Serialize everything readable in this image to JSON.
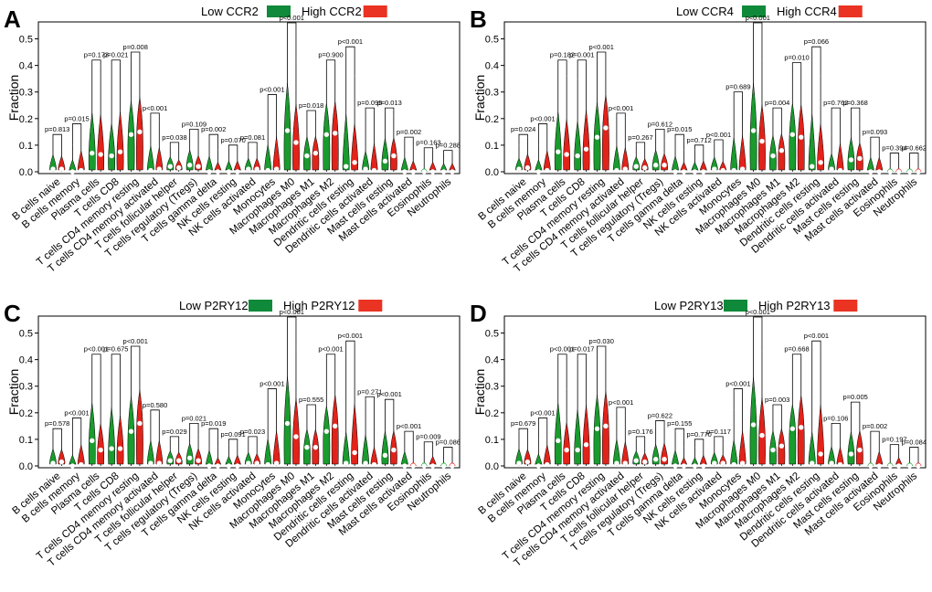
{
  "colors": {
    "low": "#1a9b2e",
    "high": "#e2231a",
    "legend_low": "#0f8a3a",
    "legend_high": "#ea3323"
  },
  "chart_data": [
    {
      "type": "violin",
      "panel": "A",
      "gene": "CCR2",
      "legend": [
        "Low CCR2",
        "High CCR2"
      ],
      "ylabel": "Fraction",
      "ylim": [
        0,
        0.55
      ],
      "yticks": [
        "0.0",
        "0.1",
        "0.2",
        "0.3",
        "0.4",
        "0.5"
      ],
      "categories": [
        "B cells naive",
        "B cells memory",
        "Plasma cells",
        "T cells CD8",
        "T cells CD4 memory resting",
        "T cells CD4 memory activated",
        "T cells follicular helper",
        "T cells regulatory (Tregs)",
        "T cells gamma delta",
        "NK cells resting",
        "NK cells activated",
        "Monocytes",
        "Macrophages M0",
        "Macrophages M1",
        "Macrophages M2",
        "Dendritic cells resting",
        "Dendritic cells activated",
        "Mast cells resting",
        "Mast cells activated",
        "Eosinophils",
        "Neutrophils"
      ],
      "p_values": [
        "p=0.813",
        "p=0.015",
        "p=0.173",
        "p=0.021",
        "p=0.008",
        "p<0.001",
        "p=0.038",
        "p=0.109",
        "p=0.002",
        "p=0.070",
        "p=0.081",
        "p<0.001",
        "p<0.001",
        "p=0.018",
        "p=0.900",
        "p<0.001",
        "p=0.095",
        "p=0.013",
        "p=0.002",
        "p=0.163",
        "p=0.288"
      ],
      "series": [
        {
          "name": "Low CCR2",
          "max": [
            0.13,
            0.1,
            0.41,
            0.33,
            0.42,
            0.21,
            0.1,
            0.15,
            0.13,
            0.09,
            0.1,
            0.22,
            0.55,
            0.22,
            0.4,
            0.46,
            0.16,
            0.23,
            0.12,
            0.05,
            0.07
          ],
          "median": [
            0.01,
            0.0,
            0.07,
            0.06,
            0.14,
            0.005,
            0.02,
            0.025,
            0.0,
            0.0,
            0.01,
            0.005,
            0.155,
            0.06,
            0.14,
            0.02,
            0.01,
            0.04,
            0.0,
            0.0,
            0.0
          ]
        },
        {
          "name": "High CCR2",
          "max": [
            0.12,
            0.17,
            0.4,
            0.41,
            0.44,
            0.19,
            0.08,
            0.11,
            0.08,
            0.09,
            0.1,
            0.28,
            0.43,
            0.21,
            0.41,
            0.36,
            0.23,
            0.21,
            0.09,
            0.08,
            0.07
          ],
          "median": [
            0.01,
            0.005,
            0.065,
            0.075,
            0.15,
            0.01,
            0.015,
            0.02,
            0.0,
            0.0,
            0.01,
            0.01,
            0.11,
            0.07,
            0.145,
            0.035,
            0.005,
            0.06,
            0.0,
            0.0,
            0.0
          ]
        }
      ]
    },
    {
      "type": "violin",
      "panel": "B",
      "gene": "CCR4",
      "legend": [
        "Low CCR4",
        "High CCR4"
      ],
      "ylabel": "Fraction",
      "ylim": [
        0,
        0.55
      ],
      "yticks": [
        "0.0",
        "0.1",
        "0.2",
        "0.3",
        "0.4",
        "0.5"
      ],
      "categories": [
        "B cells naive",
        "B cells memory",
        "Plasma cells",
        "T cells CD8",
        "T cells CD4 memory resting",
        "T cells CD4 memory activated",
        "T cells follicular helper",
        "T cells regulatory (Tregs)",
        "T cells gamma delta",
        "NK cells resting",
        "NK cells activated",
        "Monocytes",
        "Macrophages M0",
        "Macrophages M1",
        "Macrophages M2",
        "Dendritic cells resting",
        "Dendritic cells activated",
        "Mast cells resting",
        "Mast cells activated",
        "Eosinophils",
        "Neutrophils"
      ],
      "p_values": [
        "p=0.024",
        "p<0.001",
        "p=0.182",
        "p=0.001",
        "p<0.001",
        "p<0.001",
        "p=0.267",
        "p=0.612",
        "p=0.015",
        "p=0.712",
        "p<0.001",
        "p=0.689",
        "p<0.001",
        "p=0.004",
        "p=0.010",
        "p=0.066",
        "p=0.762",
        "p=0.368",
        "p=0.093",
        "p=0.394",
        "p=0.662"
      ],
      "series": [
        {
          "name": "Low CCR4",
          "max": [
            0.1,
            0.1,
            0.41,
            0.35,
            0.42,
            0.21,
            0.1,
            0.15,
            0.13,
            0.08,
            0.11,
            0.28,
            0.55,
            0.23,
            0.4,
            0.46,
            0.14,
            0.23,
            0.12,
            0.05,
            0.06
          ],
          "median": [
            0.01,
            0.0,
            0.075,
            0.06,
            0.13,
            0.005,
            0.02,
            0.025,
            0.0,
            0.0,
            0.01,
            0.005,
            0.155,
            0.06,
            0.14,
            0.02,
            0.01,
            0.045,
            0.0,
            0.0,
            0.0
          ]
        },
        {
          "name": "High CCR4",
          "max": [
            0.13,
            0.17,
            0.36,
            0.41,
            0.44,
            0.19,
            0.09,
            0.12,
            0.08,
            0.09,
            0.08,
            0.29,
            0.42,
            0.22,
            0.4,
            0.36,
            0.23,
            0.18,
            0.12,
            0.06,
            0.06
          ],
          "median": [
            0.015,
            0.005,
            0.065,
            0.085,
            0.165,
            0.01,
            0.015,
            0.025,
            0.0,
            0.0,
            0.005,
            0.01,
            0.115,
            0.08,
            0.13,
            0.035,
            0.005,
            0.05,
            0.0,
            0.0,
            0.0
          ]
        }
      ]
    },
    {
      "type": "violin",
      "panel": "C",
      "gene": "P2RY12",
      "legend": [
        "Low P2RY12",
        "High P2RY12"
      ],
      "ylabel": "Fraction",
      "ylim": [
        0,
        0.55
      ],
      "yticks": [
        "0.0",
        "0.1",
        "0.2",
        "0.3",
        "0.4",
        "0.5"
      ],
      "categories": [
        "B cells naive",
        "B cells memory",
        "Plasma cells",
        "T cells CD8",
        "T cells CD4 memory resting",
        "T cells CD4 memory activated",
        "T cells follicular helper",
        "T cells regulatory (Tregs)",
        "T cells gamma delta",
        "NK cells resting",
        "NK cells activated",
        "Monocytes",
        "Macrophages M0",
        "Macrophages M1",
        "Macrophages M2",
        "Dendritic cells resting",
        "Dendritic cells activated",
        "Mast cells resting",
        "Mast cells activated",
        "Eosinophils",
        "Neutrophils"
      ],
      "p_values": [
        "p=0.578",
        "p<0.001",
        "p<0.001",
        "p=0.675",
        "p<0.001",
        "p=0.580",
        "p=0.029",
        "p=0.021",
        "p=0.019",
        "p=0.091",
        "p=0.023",
        "p<0.001",
        "p<0.001",
        "p=0.555",
        "p<0.001",
        "p<0.001",
        "p=0.271",
        "p<0.001",
        "p<0.001",
        "p=0.009",
        "p=0.086"
      ],
      "series": [
        {
          "name": "Low P2RY12",
          "max": [
            0.13,
            0.09,
            0.41,
            0.41,
            0.42,
            0.2,
            0.1,
            0.15,
            0.13,
            0.08,
            0.1,
            0.22,
            0.55,
            0.22,
            0.34,
            0.27,
            0.25,
            0.24,
            0.12,
            0.05,
            0.06
          ],
          "median": [
            0.01,
            0.0,
            0.095,
            0.065,
            0.13,
            0.01,
            0.02,
            0.03,
            0.0,
            0.0,
            0.01,
            0.005,
            0.16,
            0.07,
            0.13,
            0.01,
            0.01,
            0.04,
            0.0,
            0.0,
            0.0
          ]
        },
        {
          "name": "High P2RY12",
          "max": [
            0.12,
            0.17,
            0.28,
            0.34,
            0.44,
            0.2,
            0.09,
            0.12,
            0.07,
            0.09,
            0.09,
            0.28,
            0.43,
            0.22,
            0.41,
            0.46,
            0.15,
            0.22,
            0.04,
            0.08,
            0.06
          ],
          "median": [
            0.015,
            0.005,
            0.06,
            0.065,
            0.16,
            0.01,
            0.02,
            0.02,
            0.0,
            0.0,
            0.01,
            0.01,
            0.11,
            0.07,
            0.15,
            0.05,
            0.005,
            0.06,
            0.0,
            0.0,
            0.0
          ]
        }
      ]
    },
    {
      "type": "violin",
      "panel": "D",
      "gene": "P2RY13",
      "legend": [
        "Low P2RY13",
        "High P2RY13"
      ],
      "ylabel": "Fraction",
      "ylim": [
        0,
        0.55
      ],
      "yticks": [
        "0.0",
        "0.1",
        "0.2",
        "0.3",
        "0.4",
        "0.5"
      ],
      "categories": [
        "B cells naive",
        "B cells memory",
        "Plasma cells",
        "T cells CD8",
        "T cells CD4 memory resting",
        "T cells CD4 memory activated",
        "T cells follicular helper",
        "T cells regulatory (Tregs)",
        "T cells gamma delta",
        "NK cells resting",
        "NK cells activated",
        "Monocytes",
        "Macrophages M0",
        "Macrophages M1",
        "Macrophages M2",
        "Dendritic cells resting",
        "Dendritic cells activated",
        "Mast cells resting",
        "Mast cells activated",
        "Eosinophils",
        "Neutrophils"
      ],
      "p_values": [
        "p=0.679",
        "p<0.001",
        "p<0.001",
        "p=0.017",
        "p=0.030",
        "p<0.001",
        "p=0.176",
        "p=0.622",
        "p=0.155",
        "p=0.770",
        "p=0.117",
        "p<0.001",
        "p<0.001",
        "p=0.003",
        "p=0.668",
        "p<0.001",
        "p=0.106",
        "p=0.005",
        "p=0.002",
        "p=0.197",
        "p=0.084"
      ],
      "series": [
        {
          "name": "Low P2RY13",
          "max": [
            0.13,
            0.1,
            0.41,
            0.4,
            0.42,
            0.21,
            0.1,
            0.15,
            0.13,
            0.07,
            0.1,
            0.21,
            0.55,
            0.22,
            0.34,
            0.27,
            0.15,
            0.23,
            0.06,
            0.05,
            0.06
          ],
          "median": [
            0.01,
            0.0,
            0.095,
            0.06,
            0.14,
            0.01,
            0.02,
            0.025,
            0.0,
            0.0,
            0.01,
            0.005,
            0.155,
            0.06,
            0.14,
            0.01,
            0.01,
            0.045,
            0.0,
            0.0,
            0.0
          ]
        },
        {
          "name": "High P2RY13",
          "max": [
            0.12,
            0.17,
            0.29,
            0.41,
            0.44,
            0.19,
            0.09,
            0.16,
            0.07,
            0.09,
            0.08,
            0.28,
            0.43,
            0.22,
            0.41,
            0.46,
            0.15,
            0.22,
            0.12,
            0.07,
            0.06
          ],
          "median": [
            0.015,
            0.005,
            0.06,
            0.08,
            0.15,
            0.01,
            0.015,
            0.025,
            0.0,
            0.0,
            0.01,
            0.01,
            0.115,
            0.075,
            0.145,
            0.045,
            0.005,
            0.06,
            0.0,
            0.0,
            0.0
          ]
        }
      ]
    }
  ]
}
